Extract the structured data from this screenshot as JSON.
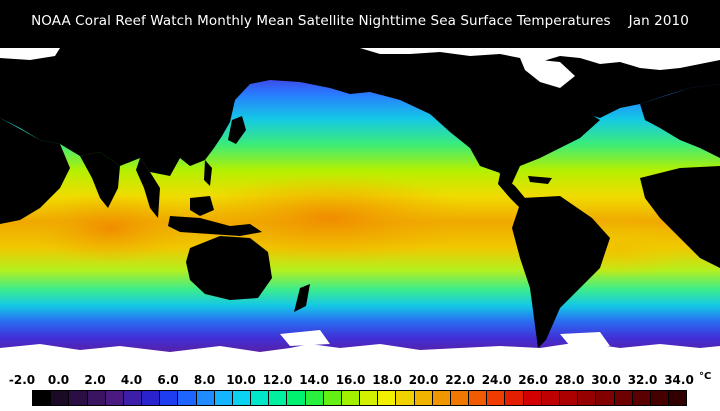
{
  "header": {
    "title": "NOAA Coral Reef Watch Monthly Mean Satellite Nighttime Sea Surface Temperatures",
    "date": "Jan 2010"
  },
  "legend": {
    "unit": "°C",
    "ticks": [
      "-2.0",
      "0.0",
      "2.0",
      "4.0",
      "6.0",
      "8.0",
      "10.0",
      "12.0",
      "14.0",
      "16.0",
      "18.0",
      "20.0",
      "22.0",
      "24.0",
      "26.0",
      "28.0",
      "30.0",
      "32.0",
      "34.0"
    ],
    "swatches": [
      "#000000",
      "#1a0a26",
      "#2a0e44",
      "#3a1460",
      "#4a1a80",
      "#3c1ea8",
      "#2a22cc",
      "#1e3cf0",
      "#1e64ff",
      "#1e8cff",
      "#14b4ff",
      "#0ad2f0",
      "#00e6c8",
      "#00f0a0",
      "#00f070",
      "#28f03c",
      "#64f014",
      "#a0f000",
      "#d2f000",
      "#f0f000",
      "#f0d200",
      "#f0b400",
      "#f09600",
      "#f07800",
      "#f05a00",
      "#f03c00",
      "#e61e00",
      "#d20000",
      "#be0000",
      "#aa0000",
      "#960000",
      "#820000",
      "#6e0000",
      "#5a0000",
      "#460000",
      "#320000"
    ]
  },
  "map": {
    "ocean_bands": [
      {
        "label": "polar-north",
        "color": "#6a2ab0"
      },
      {
        "label": "sub-polar-north",
        "color": "#3c32e6"
      },
      {
        "label": "temperate-north",
        "color": "#14c8e6"
      },
      {
        "label": "sub-tropical-north",
        "color": "#5af046"
      },
      {
        "label": "tropical",
        "color": "#e6e614"
      },
      {
        "label": "warm-pool",
        "color": "#f0a000"
      },
      {
        "label": "sub-tropical-south",
        "color": "#c8f01e"
      },
      {
        "label": "temperate-south",
        "color": "#1ed2c8"
      },
      {
        "label": "sub-polar-south",
        "color": "#3250f0"
      },
      {
        "label": "polar-south",
        "color": "#5a1ea0"
      }
    ],
    "land_color": "#000000",
    "ice_color": "#ffffff"
  }
}
